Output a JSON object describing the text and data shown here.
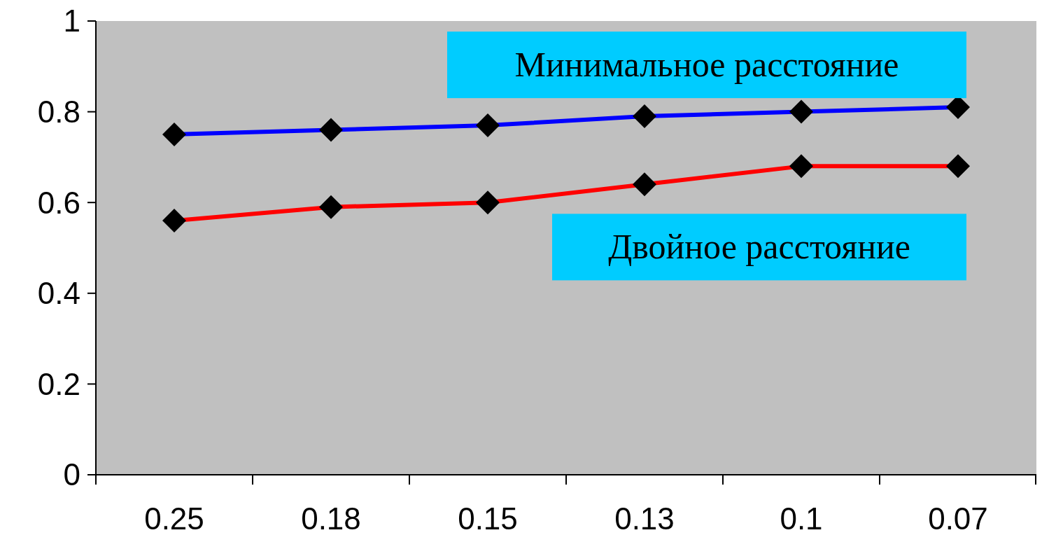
{
  "chart_data": {
    "type": "line",
    "categories": [
      "0.25",
      "0.18",
      "0.15",
      "0.13",
      "0.1",
      "0.07"
    ],
    "series": [
      {
        "name": "Минимальное расстояние",
        "color": "#0000ff",
        "values": [
          0.75,
          0.76,
          0.77,
          0.79,
          0.8,
          0.81
        ]
      },
      {
        "name": "Двойное расстояние",
        "color": "#ff0000",
        "values": [
          0.56,
          0.59,
          0.6,
          0.64,
          0.68,
          0.68
        ]
      }
    ],
    "ylim": [
      0,
      1
    ],
    "yticks": [
      0,
      {
        "value": 0.2,
        "label": "0.2"
      },
      {
        "value": 0.4,
        "label": "0.4"
      },
      {
        "value": 0.6,
        "label": "0.6"
      },
      {
        "value": 0.8,
        "label": "0.8"
      },
      1
    ],
    "grid": false,
    "marker": "diamond",
    "line_style": "solid"
  }
}
